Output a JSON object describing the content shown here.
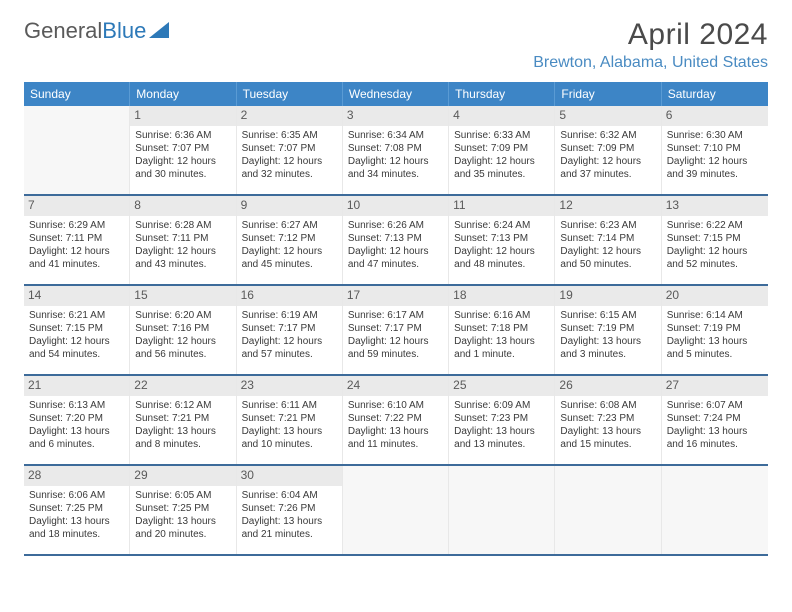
{
  "logo": {
    "text1": "General",
    "text2": "Blue"
  },
  "title": "April 2024",
  "location": "Brewton, Alabama, United States",
  "colors": {
    "header_bg": "#3d85c6",
    "header_text": "#ffffff",
    "location_text": "#4a8bc2",
    "title_text": "#4a4a4a",
    "week_divider": "#3d6b9a",
    "daynum_bg": "#eaeaea",
    "empty_bg": "#f7f7f7"
  },
  "day_headers": [
    "Sunday",
    "Monday",
    "Tuesday",
    "Wednesday",
    "Thursday",
    "Friday",
    "Saturday"
  ],
  "weeks": [
    [
      {
        "empty": true
      },
      {
        "num": "1",
        "l1": "Sunrise: 6:36 AM",
        "l2": "Sunset: 7:07 PM",
        "l3": "Daylight: 12 hours",
        "l4": "and 30 minutes."
      },
      {
        "num": "2",
        "l1": "Sunrise: 6:35 AM",
        "l2": "Sunset: 7:07 PM",
        "l3": "Daylight: 12 hours",
        "l4": "and 32 minutes."
      },
      {
        "num": "3",
        "l1": "Sunrise: 6:34 AM",
        "l2": "Sunset: 7:08 PM",
        "l3": "Daylight: 12 hours",
        "l4": "and 34 minutes."
      },
      {
        "num": "4",
        "l1": "Sunrise: 6:33 AM",
        "l2": "Sunset: 7:09 PM",
        "l3": "Daylight: 12 hours",
        "l4": "and 35 minutes."
      },
      {
        "num": "5",
        "l1": "Sunrise: 6:32 AM",
        "l2": "Sunset: 7:09 PM",
        "l3": "Daylight: 12 hours",
        "l4": "and 37 minutes."
      },
      {
        "num": "6",
        "l1": "Sunrise: 6:30 AM",
        "l2": "Sunset: 7:10 PM",
        "l3": "Daylight: 12 hours",
        "l4": "and 39 minutes."
      }
    ],
    [
      {
        "num": "7",
        "l1": "Sunrise: 6:29 AM",
        "l2": "Sunset: 7:11 PM",
        "l3": "Daylight: 12 hours",
        "l4": "and 41 minutes."
      },
      {
        "num": "8",
        "l1": "Sunrise: 6:28 AM",
        "l2": "Sunset: 7:11 PM",
        "l3": "Daylight: 12 hours",
        "l4": "and 43 minutes."
      },
      {
        "num": "9",
        "l1": "Sunrise: 6:27 AM",
        "l2": "Sunset: 7:12 PM",
        "l3": "Daylight: 12 hours",
        "l4": "and 45 minutes."
      },
      {
        "num": "10",
        "l1": "Sunrise: 6:26 AM",
        "l2": "Sunset: 7:13 PM",
        "l3": "Daylight: 12 hours",
        "l4": "and 47 minutes."
      },
      {
        "num": "11",
        "l1": "Sunrise: 6:24 AM",
        "l2": "Sunset: 7:13 PM",
        "l3": "Daylight: 12 hours",
        "l4": "and 48 minutes."
      },
      {
        "num": "12",
        "l1": "Sunrise: 6:23 AM",
        "l2": "Sunset: 7:14 PM",
        "l3": "Daylight: 12 hours",
        "l4": "and 50 minutes."
      },
      {
        "num": "13",
        "l1": "Sunrise: 6:22 AM",
        "l2": "Sunset: 7:15 PM",
        "l3": "Daylight: 12 hours",
        "l4": "and 52 minutes."
      }
    ],
    [
      {
        "num": "14",
        "l1": "Sunrise: 6:21 AM",
        "l2": "Sunset: 7:15 PM",
        "l3": "Daylight: 12 hours",
        "l4": "and 54 minutes."
      },
      {
        "num": "15",
        "l1": "Sunrise: 6:20 AM",
        "l2": "Sunset: 7:16 PM",
        "l3": "Daylight: 12 hours",
        "l4": "and 56 minutes."
      },
      {
        "num": "16",
        "l1": "Sunrise: 6:19 AM",
        "l2": "Sunset: 7:17 PM",
        "l3": "Daylight: 12 hours",
        "l4": "and 57 minutes."
      },
      {
        "num": "17",
        "l1": "Sunrise: 6:17 AM",
        "l2": "Sunset: 7:17 PM",
        "l3": "Daylight: 12 hours",
        "l4": "and 59 minutes."
      },
      {
        "num": "18",
        "l1": "Sunrise: 6:16 AM",
        "l2": "Sunset: 7:18 PM",
        "l3": "Daylight: 13 hours",
        "l4": "and 1 minute."
      },
      {
        "num": "19",
        "l1": "Sunrise: 6:15 AM",
        "l2": "Sunset: 7:19 PM",
        "l3": "Daylight: 13 hours",
        "l4": "and 3 minutes."
      },
      {
        "num": "20",
        "l1": "Sunrise: 6:14 AM",
        "l2": "Sunset: 7:19 PM",
        "l3": "Daylight: 13 hours",
        "l4": "and 5 minutes."
      }
    ],
    [
      {
        "num": "21",
        "l1": "Sunrise: 6:13 AM",
        "l2": "Sunset: 7:20 PM",
        "l3": "Daylight: 13 hours",
        "l4": "and 6 minutes."
      },
      {
        "num": "22",
        "l1": "Sunrise: 6:12 AM",
        "l2": "Sunset: 7:21 PM",
        "l3": "Daylight: 13 hours",
        "l4": "and 8 minutes."
      },
      {
        "num": "23",
        "l1": "Sunrise: 6:11 AM",
        "l2": "Sunset: 7:21 PM",
        "l3": "Daylight: 13 hours",
        "l4": "and 10 minutes."
      },
      {
        "num": "24",
        "l1": "Sunrise: 6:10 AM",
        "l2": "Sunset: 7:22 PM",
        "l3": "Daylight: 13 hours",
        "l4": "and 11 minutes."
      },
      {
        "num": "25",
        "l1": "Sunrise: 6:09 AM",
        "l2": "Sunset: 7:23 PM",
        "l3": "Daylight: 13 hours",
        "l4": "and 13 minutes."
      },
      {
        "num": "26",
        "l1": "Sunrise: 6:08 AM",
        "l2": "Sunset: 7:23 PM",
        "l3": "Daylight: 13 hours",
        "l4": "and 15 minutes."
      },
      {
        "num": "27",
        "l1": "Sunrise: 6:07 AM",
        "l2": "Sunset: 7:24 PM",
        "l3": "Daylight: 13 hours",
        "l4": "and 16 minutes."
      }
    ],
    [
      {
        "num": "28",
        "l1": "Sunrise: 6:06 AM",
        "l2": "Sunset: 7:25 PM",
        "l3": "Daylight: 13 hours",
        "l4": "and 18 minutes."
      },
      {
        "num": "29",
        "l1": "Sunrise: 6:05 AM",
        "l2": "Sunset: 7:25 PM",
        "l3": "Daylight: 13 hours",
        "l4": "and 20 minutes."
      },
      {
        "num": "30",
        "l1": "Sunrise: 6:04 AM",
        "l2": "Sunset: 7:26 PM",
        "l3": "Daylight: 13 hours",
        "l4": "and 21 minutes."
      },
      {
        "empty": true
      },
      {
        "empty": true
      },
      {
        "empty": true
      },
      {
        "empty": true
      }
    ]
  ]
}
